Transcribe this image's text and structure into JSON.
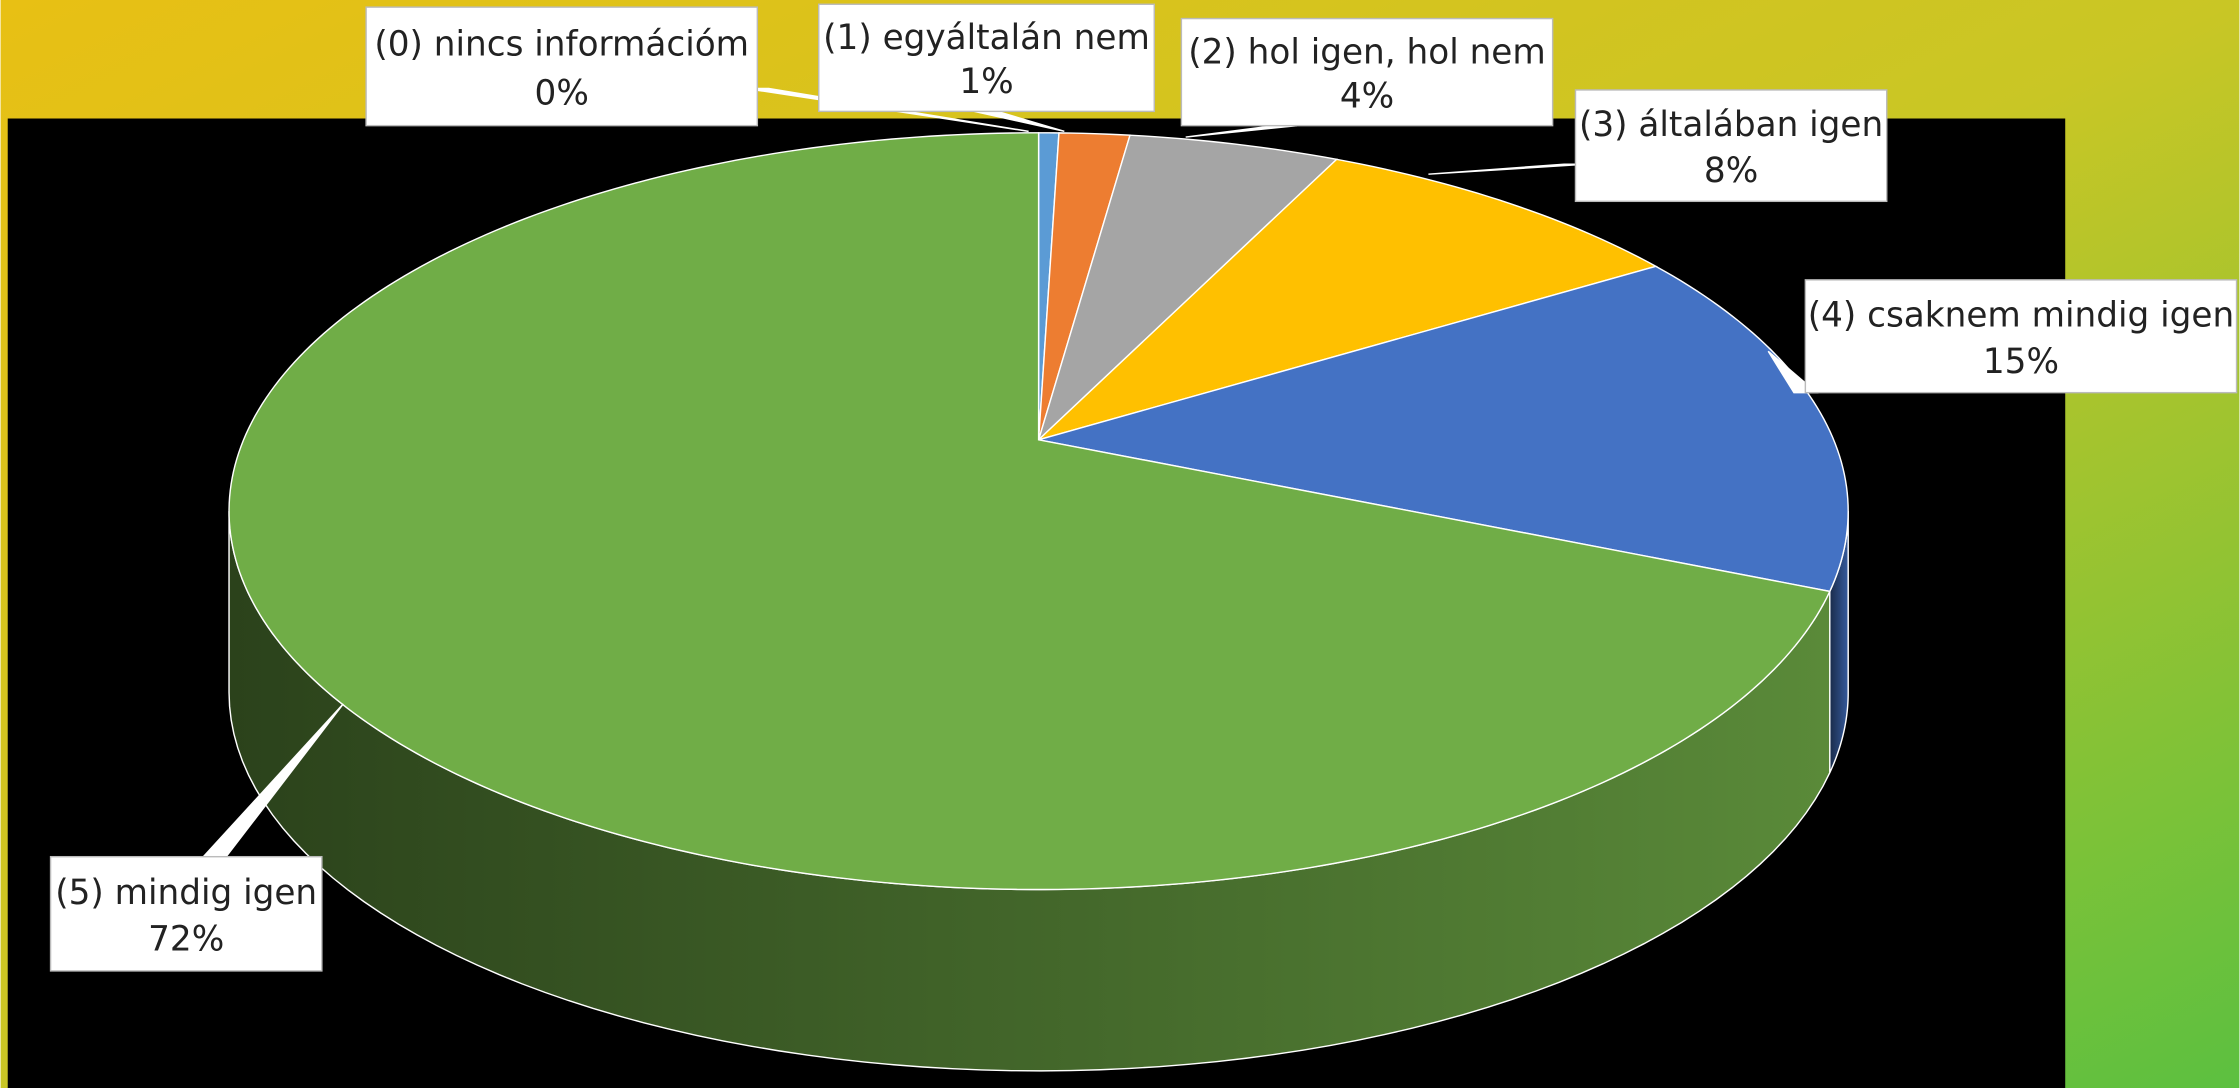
{
  "chart_data": {
    "type": "pie3d",
    "categories": [
      "(0) nincs információm",
      "(1) egyáltalán nem",
      "(2) hol igen, hol nem",
      "(3) általában igen",
      "(4) csaknem mindig igen",
      "(5) mindig igen"
    ],
    "values": [
      0.4,
      1.4,
      4.2,
      7.8,
      14.6,
      71.6
    ],
    "value_labels": [
      "0%",
      "1%",
      "4%",
      "8%",
      "15%",
      "72%"
    ],
    "colors": [
      "#5b9bd5",
      "#ed7d31",
      "#a5a5a5",
      "#ffc000",
      "#4472c4",
      "#70ad47"
    ]
  }
}
